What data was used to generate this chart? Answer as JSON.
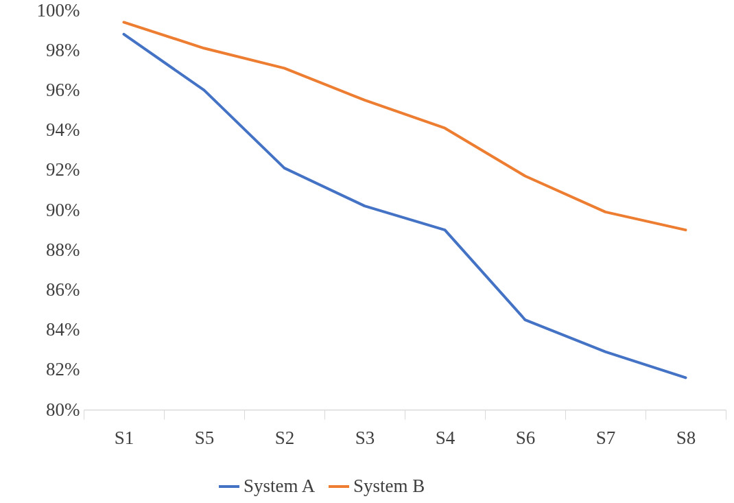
{
  "chart_data": {
    "type": "line",
    "categories": [
      "S1",
      "S5",
      "S2",
      "S3",
      "S4",
      "S6",
      "S7",
      "S8"
    ],
    "series": [
      {
        "name": "System A",
        "color": "#4472c4",
        "values": [
          98.8,
          96.0,
          92.1,
          90.2,
          89.0,
          84.5,
          82.9,
          81.6
        ]
      },
      {
        "name": "System B",
        "color": "#ed7d31",
        "values": [
          99.4,
          98.1,
          97.1,
          95.5,
          94.1,
          91.7,
          89.9,
          89.0
        ]
      }
    ],
    "ylim": [
      80,
      100
    ],
    "yticks": [
      {
        "value": 80,
        "label": "80%"
      },
      {
        "value": 82,
        "label": "82%"
      },
      {
        "value": 84,
        "label": "84%"
      },
      {
        "value": 86,
        "label": "86%"
      },
      {
        "value": 88,
        "label": "88%"
      },
      {
        "value": 90,
        "label": "90%"
      },
      {
        "value": 92,
        "label": "92%"
      },
      {
        "value": 94,
        "label": "94%"
      },
      {
        "value": 96,
        "label": "96%"
      },
      {
        "value": 98,
        "label": "98%"
      },
      {
        "value": 100,
        "label": "100%"
      }
    ],
    "legend": "bottom",
    "line_style": "solid"
  }
}
